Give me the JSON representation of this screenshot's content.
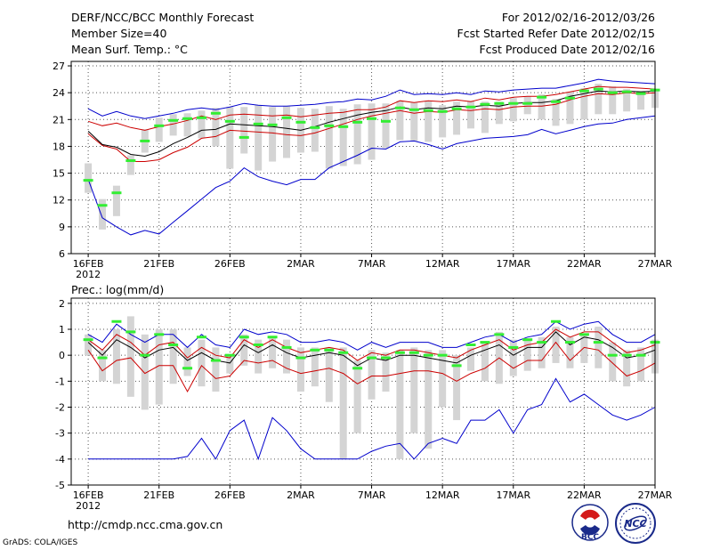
{
  "header": {
    "title": "DERF/NCC/BCC Monthly Forecast",
    "member_size": "Member Size=40",
    "variable": "Mean Surf. Temp.: °C",
    "period": "For 2012/02/16-2012/03/26",
    "started": "Fcst Started Refer Date 2012/02/15",
    "produced": "Fcst Produced Date 2012/02/16"
  },
  "footer": {
    "url": "http://cmdp.ncc.cma.gov.cn",
    "credit": "GrADS: COLA/IGES",
    "logo1_text": "BCC",
    "logo2_text": "NCC"
  },
  "colors": {
    "max_line": "#0000cc",
    "upper_line": "#cc0000",
    "mean_line": "#000000",
    "lower_line": "#cc0000",
    "min_line": "#0000cc",
    "box": "#d4d4d4",
    "median": "#33ee33",
    "grid": "#555555"
  },
  "chart_data": [
    {
      "type": "line",
      "title": "Mean Surf. Temp.: °C",
      "x_ticks": [
        "16FEB",
        "21FEB",
        "26FEB",
        "2MAR",
        "7MAR",
        "12MAR",
        "17MAR",
        "22MAR",
        "27MAR"
      ],
      "x_tick_index": [
        0,
        5,
        10,
        15,
        20,
        25,
        30,
        35,
        40
      ],
      "x_year_label": "2012",
      "xlim": [
        -1.2,
        40
      ],
      "ylim": [
        6,
        27.5
      ],
      "yticks": [
        6,
        9,
        12,
        15,
        18,
        21,
        24,
        27
      ],
      "series": [
        {
          "name": "max",
          "values": [
            22.2,
            21.4,
            21.9,
            21.4,
            21.1,
            21.4,
            21.7,
            22.1,
            22.3,
            22.1,
            22.4,
            22.8,
            22.6,
            22.5,
            22.5,
            22.6,
            22.7,
            22.9,
            23.0,
            23.3,
            23.2,
            23.6,
            24.3,
            23.8,
            23.9,
            23.8,
            24.0,
            23.8,
            24.2,
            24.1,
            24.3,
            24.4,
            24.5,
            24.5,
            24.8,
            25.1,
            25.5,
            25.3,
            25.2,
            25.1,
            25.0
          ]
        },
        {
          "name": "upper",
          "values": [
            20.8,
            20.3,
            20.6,
            20.1,
            19.8,
            20.2,
            20.5,
            20.9,
            21.4,
            21.0,
            21.5,
            21.6,
            21.5,
            21.4,
            21.5,
            21.3,
            21.5,
            21.7,
            21.8,
            22.1,
            22.1,
            22.4,
            23.1,
            22.9,
            23.1,
            23.0,
            23.2,
            23.0,
            23.4,
            23.2,
            23.5,
            23.6,
            23.6,
            23.8,
            24.1,
            24.4,
            24.7,
            24.6,
            24.6,
            24.5,
            24.4
          ]
        },
        {
          "name": "mean",
          "values": [
            19.7,
            18.2,
            17.9,
            17.1,
            16.9,
            17.4,
            18.3,
            19.0,
            19.8,
            19.9,
            20.5,
            20.4,
            20.3,
            20.2,
            20.0,
            19.8,
            20.2,
            20.7,
            21.1,
            21.5,
            21.8,
            22.0,
            22.4,
            22.1,
            22.3,
            22.2,
            22.5,
            22.4,
            22.6,
            22.5,
            22.8,
            22.9,
            22.9,
            23.1,
            23.6,
            23.9,
            24.2,
            24.1,
            24.2,
            24.1,
            24.2
          ]
        },
        {
          "name": "lower",
          "values": [
            19.4,
            18.1,
            17.7,
            16.3,
            16.3,
            16.5,
            17.3,
            17.9,
            18.9,
            19.1,
            19.8,
            19.7,
            19.6,
            19.5,
            19.3,
            19.2,
            19.5,
            20.0,
            20.5,
            21.0,
            21.4,
            21.7,
            22.0,
            21.7,
            21.9,
            21.8,
            22.1,
            22.0,
            22.2,
            22.1,
            22.4,
            22.5,
            22.5,
            22.7,
            23.2,
            23.6,
            23.9,
            23.8,
            24.0,
            23.9,
            24.0
          ]
        },
        {
          "name": "min",
          "values": [
            14.3,
            10.0,
            9.0,
            8.1,
            8.6,
            8.2,
            9.5,
            10.8,
            12.1,
            13.4,
            14.1,
            15.6,
            14.6,
            14.1,
            13.7,
            14.3,
            14.3,
            15.6,
            16.3,
            17.0,
            17.8,
            17.7,
            18.5,
            18.6,
            18.2,
            17.7,
            18.3,
            18.6,
            18.9,
            19.0,
            19.1,
            19.3,
            19.9,
            19.4,
            19.8,
            20.2,
            20.5,
            20.6,
            21.0,
            21.2,
            21.4
          ]
        },
        {
          "name": "box_low",
          "values": [
            12.8,
            8.7,
            10.2,
            14.8,
            17.3,
            18.5,
            19.2,
            19.1,
            18.9,
            18.0,
            15.5,
            17.2,
            15.3,
            16.3,
            16.7,
            17.3,
            17.4,
            15.5,
            15.8,
            16.0,
            16.5,
            17.8,
            18.7,
            18.6,
            18.5,
            19.0,
            19.3,
            20.0,
            19.5,
            20.5,
            20.8,
            21.6,
            21.0,
            20.3,
            20.5,
            21.0,
            21.6,
            21.6,
            21.9,
            22.1,
            22.3
          ]
        },
        {
          "name": "box_high",
          "values": [
            16.1,
            12.1,
            13.6,
            17.0,
            19.9,
            21.2,
            21.6,
            21.7,
            22.0,
            22.3,
            22.4,
            22.4,
            22.6,
            22.4,
            22.5,
            22.3,
            22.2,
            22.5,
            22.2,
            22.7,
            22.8,
            22.8,
            23.1,
            22.9,
            23.1,
            22.6,
            23.0,
            23.1,
            23.0,
            23.0,
            23.4,
            23.6,
            23.8,
            23.3,
            24.1,
            24.5,
            25.0,
            24.7,
            24.4,
            24.2,
            24.2
          ]
        },
        {
          "name": "median",
          "values": [
            14.2,
            11.4,
            12.8,
            16.4,
            18.6,
            20.3,
            20.9,
            21.1,
            21.2,
            21.7,
            20.8,
            19.0,
            20.5,
            20.4,
            21.2,
            20.7,
            20.1,
            20.3,
            20.2,
            20.7,
            21.1,
            20.8,
            22.3,
            22.1,
            22.0,
            21.9,
            22.2,
            22.4,
            22.7,
            22.8,
            22.8,
            22.8,
            23.5,
            23.0,
            23.4,
            24.2,
            24.4,
            24.0,
            24.1,
            23.9,
            24.3
          ]
        }
      ]
    },
    {
      "type": "line",
      "title": "Prec.: log(mm/d)",
      "x_ticks": [
        "16FEB",
        "21FEB",
        "26FEB",
        "2MAR",
        "7MAR",
        "12MAR",
        "17MAR",
        "22MAR",
        "27MAR"
      ],
      "x_tick_index": [
        0,
        5,
        10,
        15,
        20,
        25,
        30,
        35,
        40
      ],
      "x_year_label": "2012",
      "xlim": [
        -1.2,
        40
      ],
      "ylim": [
        -5,
        2.2
      ],
      "yticks": [
        -5,
        -4,
        -3,
        -2,
        -1,
        0,
        1,
        2
      ],
      "series": [
        {
          "name": "max",
          "values": [
            0.8,
            0.5,
            1.2,
            0.8,
            0.5,
            0.8,
            0.8,
            0.3,
            0.8,
            0.4,
            0.3,
            1.0,
            0.8,
            0.9,
            0.8,
            0.5,
            0.5,
            0.6,
            0.5,
            0.2,
            0.5,
            0.3,
            0.5,
            0.5,
            0.5,
            0.3,
            0.3,
            0.5,
            0.7,
            0.8,
            0.5,
            0.7,
            0.8,
            1.3,
            1.0,
            1.2,
            1.3,
            0.8,
            0.5,
            0.5,
            0.8
          ]
        },
        {
          "name": "upper",
          "values": [
            0.6,
            0.2,
            0.8,
            0.5,
            0.0,
            0.4,
            0.5,
            -0.1,
            0.3,
            0.0,
            -0.1,
            0.6,
            0.3,
            0.6,
            0.3,
            0.1,
            0.2,
            0.3,
            0.2,
            -0.2,
            0.1,
            0.0,
            0.2,
            0.2,
            0.1,
            0.0,
            -0.1,
            0.2,
            0.4,
            0.6,
            0.2,
            0.4,
            0.5,
            1.0,
            0.7,
            0.9,
            0.9,
            0.5,
            0.1,
            0.2,
            0.4
          ]
        },
        {
          "name": "mean",
          "values": [
            0.5,
            0.0,
            0.6,
            0.3,
            -0.1,
            0.2,
            0.3,
            -0.2,
            0.1,
            -0.2,
            -0.3,
            0.4,
            0.1,
            0.4,
            0.1,
            -0.1,
            0.0,
            0.1,
            0.0,
            -0.4,
            -0.1,
            -0.2,
            0.0,
            0.0,
            -0.1,
            -0.2,
            -0.3,
            0.0,
            0.2,
            0.4,
            0.0,
            0.3,
            0.3,
            0.9,
            0.4,
            0.7,
            0.6,
            0.3,
            -0.1,
            0.0,
            0.2
          ]
        },
        {
          "name": "lower",
          "values": [
            0.2,
            -0.6,
            -0.2,
            -0.1,
            -0.7,
            -0.4,
            -0.4,
            -1.4,
            -0.4,
            -0.9,
            -0.8,
            -0.2,
            -0.3,
            -0.2,
            -0.5,
            -0.7,
            -0.6,
            -0.5,
            -0.7,
            -1.1,
            -0.8,
            -0.8,
            -0.7,
            -0.6,
            -0.6,
            -0.7,
            -1.0,
            -0.7,
            -0.5,
            -0.1,
            -0.5,
            -0.2,
            -0.2,
            0.5,
            -0.2,
            0.3,
            0.2,
            -0.3,
            -0.8,
            -0.6,
            -0.3
          ]
        },
        {
          "name": "min",
          "values": [
            -4.0,
            -4.0,
            -4.0,
            -4.0,
            -4.0,
            -4.0,
            -4.0,
            -3.9,
            -3.2,
            -4.0,
            -2.9,
            -2.5,
            -4.0,
            -2.4,
            -2.9,
            -3.6,
            -4.0,
            -4.0,
            -4.0,
            -4.0,
            -3.7,
            -3.5,
            -3.4,
            -4.0,
            -3.4,
            -3.2,
            -3.4,
            -2.5,
            -2.5,
            -2.1,
            -3.0,
            -2.1,
            -1.9,
            -0.9,
            -1.8,
            -1.5,
            -1.9,
            -2.3,
            -2.5,
            -2.3,
            -2.0
          ]
        },
        {
          "name": "box_low",
          "values": [
            0.0,
            -1.0,
            -1.1,
            -1.6,
            -2.1,
            -1.9,
            -1.1,
            -0.8,
            -1.2,
            -1.4,
            -0.7,
            -0.4,
            -0.7,
            -0.5,
            -0.7,
            -1.4,
            -1.2,
            -1.8,
            -4.0,
            -3.0,
            -1.7,
            -1.4,
            -4.0,
            -3.0,
            -3.6,
            -2.0,
            -2.5,
            -0.6,
            -1.0,
            -1.1,
            -0.8,
            -0.6,
            -0.5,
            -0.3,
            -0.5,
            -0.3,
            -0.5,
            -1.0,
            -1.2,
            -1.0,
            -0.7
          ]
        },
        {
          "name": "box_high",
          "values": [
            0.8,
            0.2,
            1.0,
            1.5,
            0.8,
            1.0,
            1.0,
            0.3,
            0.6,
            0.3,
            0.0,
            0.8,
            0.6,
            0.7,
            0.6,
            0.3,
            0.3,
            0.3,
            0.3,
            -0.2,
            0.2,
            0.1,
            0.2,
            0.3,
            0.2,
            0.2,
            0.0,
            0.3,
            0.5,
            0.9,
            0.6,
            0.6,
            0.7,
            1.1,
            0.7,
            0.8,
            1.1,
            0.5,
            0.2,
            0.3,
            0.6
          ]
        },
        {
          "name": "median",
          "values": [
            0.6,
            -0.1,
            1.3,
            0.9,
            0.0,
            0.8,
            0.4,
            -0.5,
            0.7,
            -0.2,
            0.0,
            0.7,
            0.4,
            0.7,
            0.3,
            -0.1,
            0.2,
            0.2,
            0.1,
            -0.5,
            -0.1,
            -0.1,
            0.1,
            0.1,
            0.0,
            0.0,
            -0.4,
            0.4,
            0.5,
            0.8,
            0.3,
            0.6,
            0.5,
            1.3,
            0.5,
            0.8,
            0.5,
            0.0,
            0.0,
            0.0,
            0.5
          ]
        }
      ]
    }
  ]
}
